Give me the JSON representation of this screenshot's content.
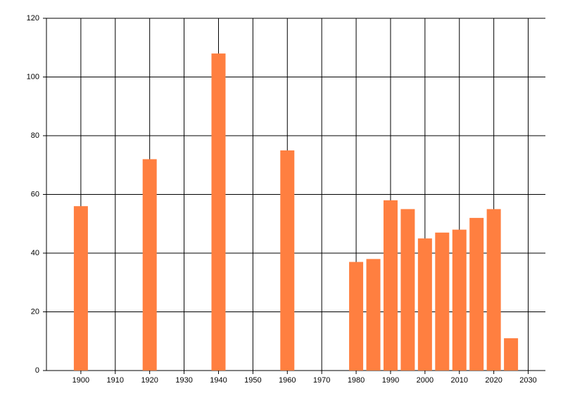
{
  "chart_data": {
    "type": "bar",
    "x": [
      1900,
      1920,
      1940,
      1960,
      1980,
      1985,
      1990,
      1995,
      2000,
      2005,
      2010,
      2015,
      2020,
      2025
    ],
    "values": [
      56,
      72,
      108,
      75,
      37,
      38,
      58,
      55,
      45,
      47,
      48,
      52,
      55,
      11
    ],
    "color": "#ff7f40",
    "xlim": [
      1890,
      2035
    ],
    "xticks": [
      1900,
      1910,
      1920,
      1930,
      1940,
      1950,
      1960,
      1970,
      1980,
      1990,
      2000,
      2010,
      2020,
      2030
    ],
    "ylim": [
      0,
      120
    ],
    "yticks": [
      0,
      20,
      40,
      60,
      80,
      100,
      120
    ],
    "grid": true
  }
}
